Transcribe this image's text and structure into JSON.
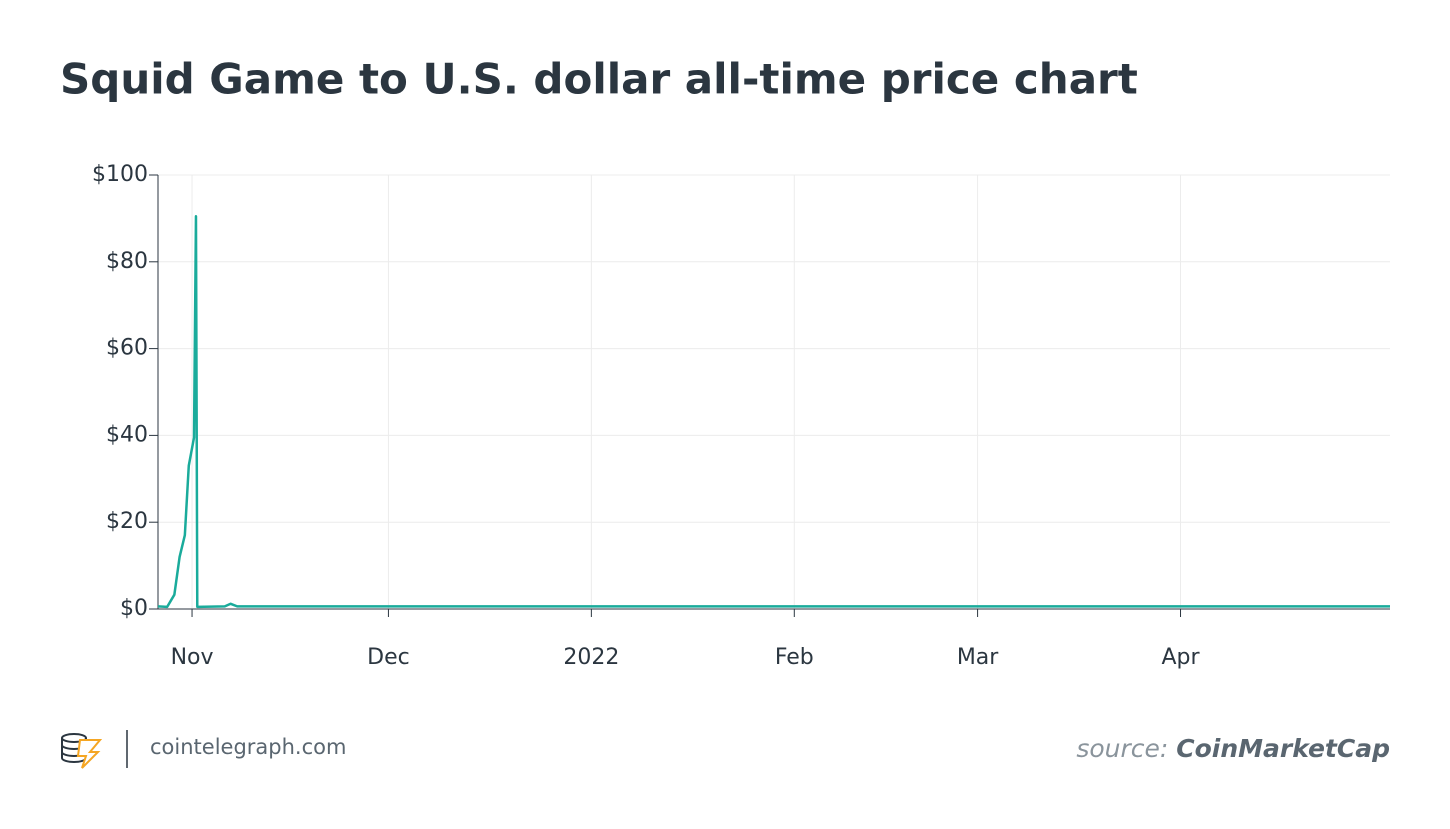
{
  "chart_data": {
    "type": "line",
    "title": "Squid Game to U.S. dollar all-time price chart",
    "x": [
      -5.2,
      -3.8,
      -2.7,
      -1.9,
      -1.1,
      -0.5,
      0.3,
      0.6,
      0.8,
      5.0,
      5.9,
      6.9,
      183
    ],
    "series": [
      {
        "name": "Squid Game",
        "color": "#1aab9b",
        "values": [
          0.6,
          0.5,
          3.3,
          12,
          17,
          33,
          39.5,
          90.5,
          0.5,
          0.6,
          1.2,
          0.6,
          0.6
        ]
      }
    ],
    "xlim": [
      -5.2,
      183
    ],
    "xticks": [
      {
        "value": 0,
        "label": "Nov"
      },
      {
        "value": 30,
        "label": "Dec"
      },
      {
        "value": 61,
        "label": "2022"
      },
      {
        "value": 92,
        "label": "Feb"
      },
      {
        "value": 120,
        "label": "Mar"
      },
      {
        "value": 151,
        "label": "Apr"
      }
    ],
    "ylim": [
      0,
      100
    ],
    "yticks": [
      {
        "value": 0,
        "label": "$0"
      },
      {
        "value": 20,
        "label": "$20"
      },
      {
        "value": 40,
        "label": "$40"
      },
      {
        "value": 60,
        "label": "$60"
      },
      {
        "value": 80,
        "label": "$80"
      },
      {
        "value": 100,
        "label": "$100"
      }
    ],
    "grid": true
  },
  "footer": {
    "site": "cointelegraph.com",
    "source_label": "source:",
    "source": "CoinMarketCap"
  }
}
